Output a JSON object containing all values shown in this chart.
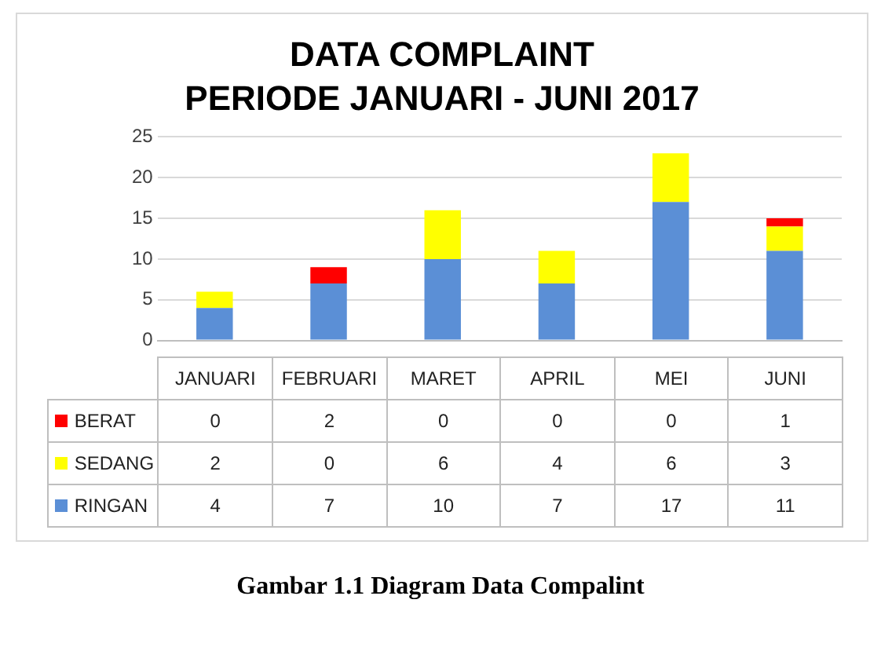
{
  "chart_data": {
    "type": "bar",
    "title": "DATA COMPLAINT",
    "subtitle": "PERIODE JANUARI - JUNI 2017",
    "categories": [
      "JANUARI",
      "FEBRUARI",
      "MARET",
      "APRIL",
      "MEI",
      "JUNI"
    ],
    "stacked": true,
    "series": [
      {
        "name": "RINGAN",
        "color": "#5b8fd6",
        "values": [
          4,
          7,
          10,
          7,
          17,
          11
        ]
      },
      {
        "name": "SEDANG",
        "color": "#ffff00",
        "values": [
          2,
          0,
          6,
          4,
          6,
          3
        ]
      },
      {
        "name": "BERAT",
        "color": "#ff0000",
        "values": [
          0,
          2,
          0,
          0,
          0,
          1
        ]
      }
    ],
    "ylim": [
      0,
      25
    ],
    "yticks": [
      0,
      5,
      10,
      15,
      20,
      25
    ],
    "grid": "y",
    "legend": "bottom",
    "data_labels": true,
    "annotations": [
      "Gambar 1.1 Diagram Data Compalint"
    ]
  }
}
